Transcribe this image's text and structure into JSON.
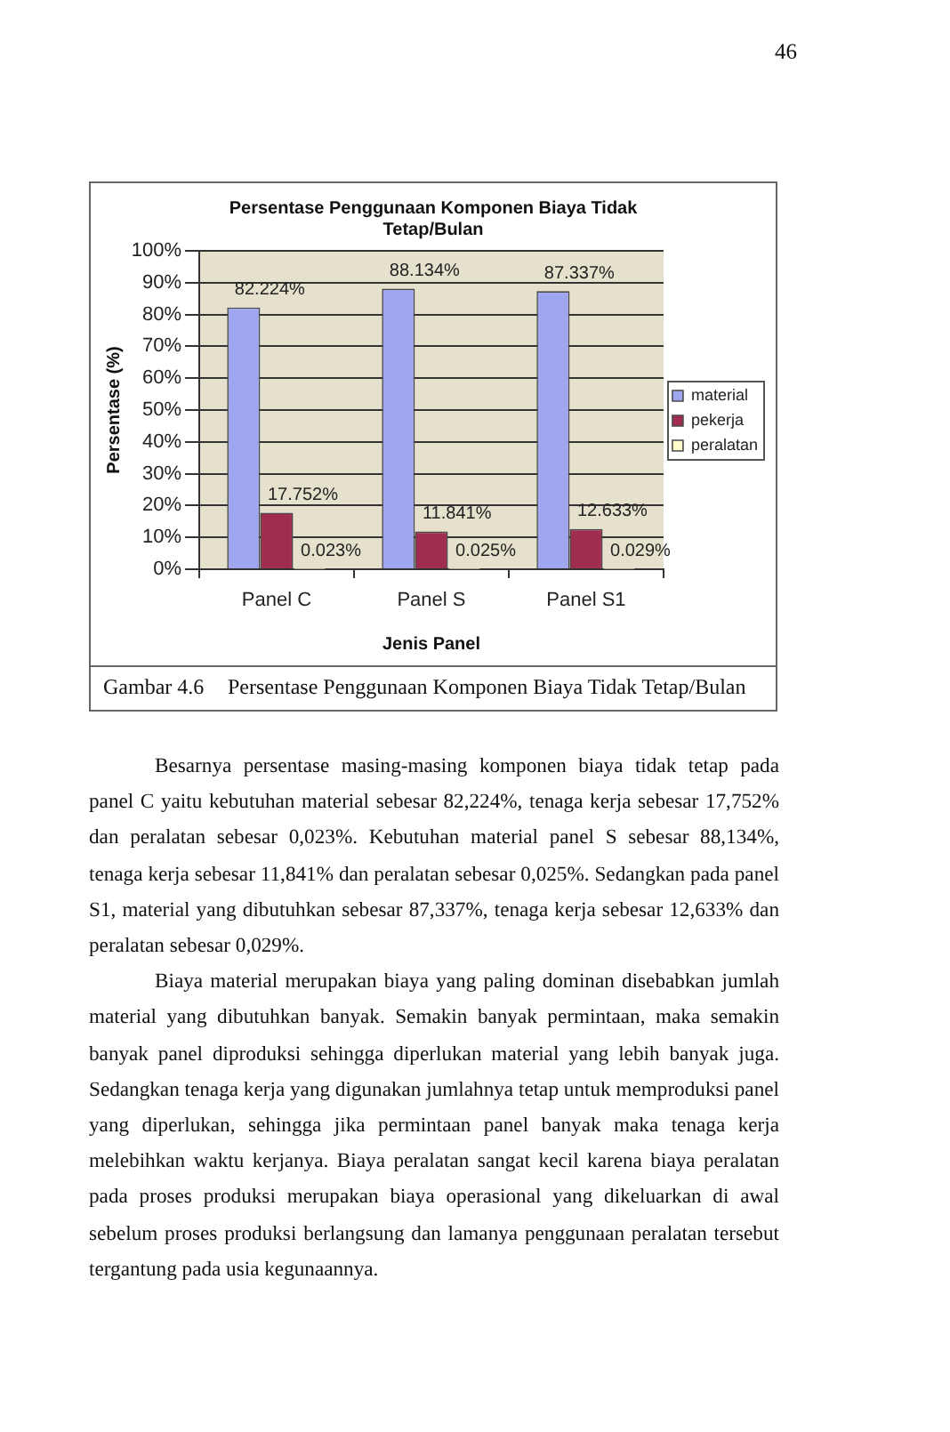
{
  "chart_data": {
    "type": "bar",
    "title": "Persentase Penggunaan Komponen Biaya Tidak Tetap/Bulan",
    "xlabel": "Jenis Panel",
    "ylabel": "Persentase (%)",
    "categories": [
      "Panel C",
      "Panel S",
      "Panel S1"
    ],
    "series": [
      {
        "name": "material",
        "color": "#9fa5ee",
        "values": [
          82.224,
          88.134,
          87.337
        ],
        "value_labels": [
          "82.224%",
          "88.134%",
          "87.337%"
        ]
      },
      {
        "name": "pekerja",
        "color": "#a02c50",
        "values": [
          17.752,
          11.841,
          12.633
        ],
        "value_labels": [
          "17.752%",
          "11.841%",
          "12.633%"
        ]
      },
      {
        "name": "peralatan",
        "color": "#ffffcc",
        "values": [
          0.023,
          0.025,
          0.029
        ],
        "value_labels": [
          "0.023%",
          "0.025%",
          "0.029%"
        ]
      }
    ],
    "ylim": [
      0,
      100
    ],
    "yticks": [
      {
        "value": 0,
        "label": "0%"
      },
      {
        "value": 10,
        "label": "10%"
      },
      {
        "value": 20,
        "label": "20%"
      },
      {
        "value": 30,
        "label": "30%"
      },
      {
        "value": 40,
        "label": "40%"
      },
      {
        "value": 50,
        "label": "50%"
      },
      {
        "value": 60,
        "label": "60%"
      },
      {
        "value": 70,
        "label": "70%"
      },
      {
        "value": 80,
        "label": "80%"
      },
      {
        "value": 90,
        "label": "90%"
      },
      {
        "value": 100,
        "label": "100%"
      }
    ],
    "grid": "y",
    "legend": "right",
    "annotations": [
      "46",
      "Gambar 4.6",
      "Persentase Penggunaan Komponen Biaya Tidak Tetap/Bulan",
      "Besarnya persentase masing-masing komponen biaya tidak tetap pada panel C yaitu kebutuhan material sebesar 82,224%, tenaga kerja sebesar 17,752% dan peralatan sebesar 0,023%. Kebutuhan material panel S sebesar 88,134%, tenaga kerja sebesar 11,841% dan peralatan sebesar 0,025%. Sedangkan pada panel S1, material yang dibutuhkan sebesar 87,337%, tenaga kerja sebesar 12,633% dan peralatan sebesar 0,029%.",
      "Biaya material merupakan biaya yang paling dominan disebabkan jumlah material yang dibutuhkan banyak. Semakin banyak permintaan, maka semakin banyak panel diproduksi sehingga diperlukan material yang lebih banyak juga. Sedangkan tenaga kerja yang digunakan jumlahnya tetap untuk memproduksi panel yang diperlukan, sehingga jika permintaan panel banyak maka tenaga kerja melebihkan waktu kerjanya. Biaya peralatan sangat kecil karena biaya peralatan pada proses produksi merupakan biaya operasional yang dikeluarkan di awal sebelum proses produksi berlangsung dan lamanya penggunaan peralatan tersebut tergantung pada usia kegunaannya."
    ]
  }
}
